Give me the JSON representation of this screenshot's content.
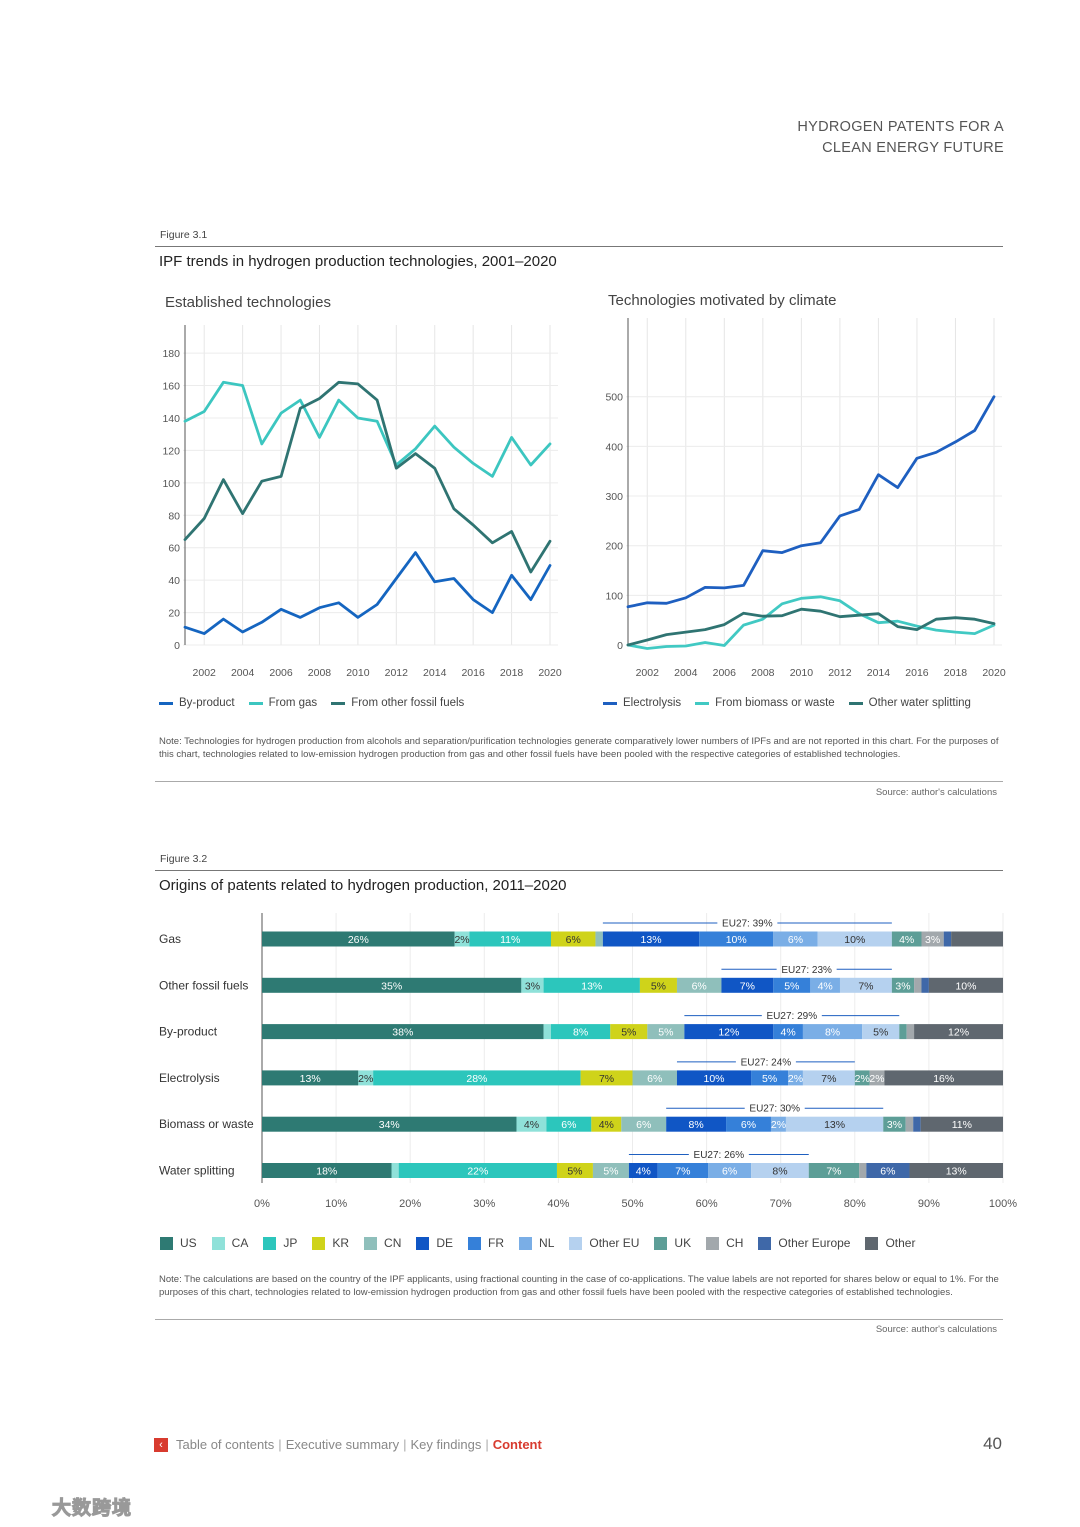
{
  "header": {
    "line1": "HYDROGEN PATENTS FOR A",
    "line2": "CLEAN ENERGY FUTURE"
  },
  "fig1": {
    "label": "Figure 3.1",
    "title": "IPF trends in hydrogen production technologies, 2001–2020",
    "note": "Note: Technologies for hydrogen production from alcohols and separation/purification technologies generate comparatively lower numbers of IPFs and are not reported in this chart. For the purposes of this chart, technologies related to low-emission hydrogen production from gas and other fossil fuels have been pooled with the respective categories of established technologies.",
    "source": "Source: author's calculations"
  },
  "fig2": {
    "label": "Figure 3.2",
    "title": "Origins of patents related to hydrogen production, 2011–2020",
    "note": "Note: The calculations are based on the country of the IPF applicants, using fractional counting in the case of co-applications. The value labels are not reported for shares below or equal to 1%. For the purposes of this chart, technologies related to low-emission hydrogen production from gas and other fossil fuels have been pooled with the respective categories of established technologies.",
    "source": "Source: author's calculations"
  },
  "colors": {
    "US": "#2e7a73",
    "CA": "#8fe1d9",
    "JP": "#2cc6bc",
    "KR": "#cfd31a",
    "CN": "#8fbfbb",
    "DE": "#1056c5",
    "FR": "#3580d9",
    "NL": "#7aaee6",
    "Other EU": "#b5d1ef",
    "UK": "#5d9e97",
    "CH": "#a2a8ac",
    "Other Europe": "#3f68a8",
    "Other": "#5f676f",
    "by_product": "#1565c0",
    "from_gas": "#3cc6c0",
    "from_fossil": "#2f7472",
    "electrolysis": "#1e5fc0",
    "biomass": "#41c9c3",
    "water_splitting": "#2f7472"
  },
  "chart_data": [
    {
      "type": "line",
      "title": "Established technologies",
      "x": [
        2001,
        2002,
        2003,
        2004,
        2005,
        2006,
        2007,
        2008,
        2009,
        2010,
        2011,
        2012,
        2013,
        2014,
        2015,
        2016,
        2017,
        2018,
        2019,
        2020
      ],
      "xticks": [
        "2002",
        "2004",
        "2006",
        "2008",
        "2010",
        "2012",
        "2014",
        "2016",
        "2018",
        "2020"
      ],
      "yticks": [
        "0",
        "20",
        "40",
        "60",
        "80",
        "100",
        "120",
        "140",
        "160",
        "180"
      ],
      "ylim": [
        0,
        185
      ],
      "grid": true,
      "legend": "bottom",
      "series": [
        {
          "name": "By-product",
          "key": "by_product",
          "values": [
            11,
            7,
            16,
            8,
            14,
            22,
            17,
            23,
            26,
            17,
            25,
            41,
            57,
            39,
            41,
            28,
            20,
            43,
            28,
            49
          ]
        },
        {
          "name": "From gas",
          "key": "from_gas",
          "values": [
            138,
            144,
            162,
            160,
            124,
            143,
            151,
            128,
            151,
            140,
            138,
            111,
            121,
            135,
            122,
            112,
            104,
            128,
            111,
            124
          ]
        },
        {
          "name": "From other fossil fuels",
          "key": "from_fossil",
          "values": [
            65,
            78,
            102,
            81,
            101,
            104,
            146,
            152,
            162,
            161,
            151,
            109,
            118,
            109,
            84,
            74,
            63,
            70,
            45,
            64
          ]
        }
      ]
    },
    {
      "type": "line",
      "title": "Technologies motivated by climate",
      "x": [
        2001,
        2002,
        2003,
        2004,
        2005,
        2006,
        2007,
        2008,
        2009,
        2010,
        2011,
        2012,
        2013,
        2014,
        2015,
        2016,
        2017,
        2018,
        2019,
        2020
      ],
      "xticks": [
        "2002",
        "2004",
        "2006",
        "2008",
        "2010",
        "2012",
        "2014",
        "2016",
        "2018",
        "2020"
      ],
      "yticks": [
        "0",
        "100",
        "200",
        "300",
        "400",
        "500"
      ],
      "ylim": [
        0,
        580
      ],
      "grid": true,
      "legend": "bottom",
      "series": [
        {
          "name": "Electrolysis",
          "key": "electrolysis",
          "values": [
            77,
            85,
            84,
            95,
            116,
            115,
            120,
            190,
            186,
            200,
            206,
            260,
            273,
            343,
            317,
            376,
            388,
            409,
            432,
            500
          ]
        },
        {
          "name": "From biomass or waste",
          "key": "biomass",
          "values": [
            0,
            -7,
            -3,
            -2,
            5,
            -1,
            40,
            52,
            83,
            94,
            97,
            89,
            63,
            45,
            48,
            38,
            30,
            26,
            23,
            40
          ]
        },
        {
          "name": "Other water splitting",
          "key": "water_splitting",
          "values": [
            0,
            10,
            21,
            26,
            31,
            41,
            64,
            58,
            59,
            72,
            68,
            57,
            60,
            63,
            37,
            31,
            52,
            55,
            52,
            43
          ]
        }
      ]
    },
    {
      "type": "bar",
      "stacked": true,
      "orientation": "horizontal",
      "percent": true,
      "xticks": [
        "0%",
        "10%",
        "20%",
        "30%",
        "40%",
        "50%",
        "60%",
        "70%",
        "80%",
        "90%",
        "100%"
      ],
      "xlim": [
        0,
        100
      ],
      "legend": "bottom",
      "series_names": [
        "US",
        "CA",
        "JP",
        "KR",
        "CN",
        "DE",
        "FR",
        "NL",
        "Other EU",
        "UK",
        "CH",
        "Other Europe",
        "Other"
      ],
      "rows": [
        {
          "label": "Gas",
          "eu27": "EU27: 39%",
          "values": [
            26,
            2,
            11,
            6,
            1,
            13,
            10,
            6,
            10,
            4,
            3,
            1,
            7
          ],
          "labels": [
            "26%",
            "2%",
            "11%",
            "6%",
            "",
            "13%",
            "10%",
            "6%",
            "10%",
            "4%",
            "3%",
            "",
            ""
          ]
        },
        {
          "label": "Other fossil fuels",
          "eu27": "EU27: 23%",
          "values": [
            35,
            3,
            13,
            5,
            6,
            7,
            5,
            4,
            7,
            3,
            1,
            1,
            10
          ],
          "labels": [
            "35%",
            "3%",
            "13%",
            "5%",
            "6%",
            "7%",
            "5%",
            "4%",
            "7%",
            "3%",
            "",
            "",
            "10%"
          ]
        },
        {
          "label": "By-product",
          "eu27": "EU27: 29%",
          "values": [
            38,
            1,
            8,
            5,
            5,
            12,
            4,
            8,
            5,
            1,
            1,
            0,
            12
          ],
          "labels": [
            "38%",
            "",
            "8%",
            "5%",
            "5%",
            "12%",
            "4%",
            "8%",
            "5%",
            "",
            "",
            "",
            "12%"
          ]
        },
        {
          "label": "Electrolysis",
          "eu27": "EU27: 24%",
          "values": [
            13,
            2,
            28,
            7,
            6,
            10,
            5,
            2,
            7,
            2,
            2,
            0,
            16
          ],
          "labels": [
            "13%",
            "2%",
            "28%",
            "7%",
            "6%",
            "10%",
            "5%",
            "2%",
            "7%",
            "2%",
            "2%",
            "",
            "16%"
          ]
        },
        {
          "label": "Biomass or waste",
          "eu27": "EU27: 30%",
          "values": [
            34,
            4,
            6,
            4,
            6,
            8,
            6,
            2,
            13,
            3,
            1,
            1,
            11
          ],
          "labels": [
            "34%",
            "4%",
            "6%",
            "4%",
            "6%",
            "8%",
            "6%",
            "2%",
            "13%",
            "3%",
            "",
            "",
            "11%"
          ]
        },
        {
          "label": "Water splitting",
          "eu27": "EU27: 26%",
          "values": [
            18,
            1,
            22,
            5,
            5,
            4,
            7,
            6,
            8,
            7,
            1,
            6,
            13
          ],
          "labels": [
            "18%",
            "",
            "22%",
            "5%",
            "5%",
            "4%",
            "7%",
            "6%",
            "8%",
            "7%",
            "",
            "6%",
            "13%"
          ]
        }
      ]
    }
  ],
  "footer": {
    "toc": "Table of contents",
    "exec": "Executive summary",
    "key": "Key findings",
    "content": "Content",
    "sep": "|",
    "arrow": "‹",
    "page": "40"
  },
  "watermark": "大数跨境"
}
